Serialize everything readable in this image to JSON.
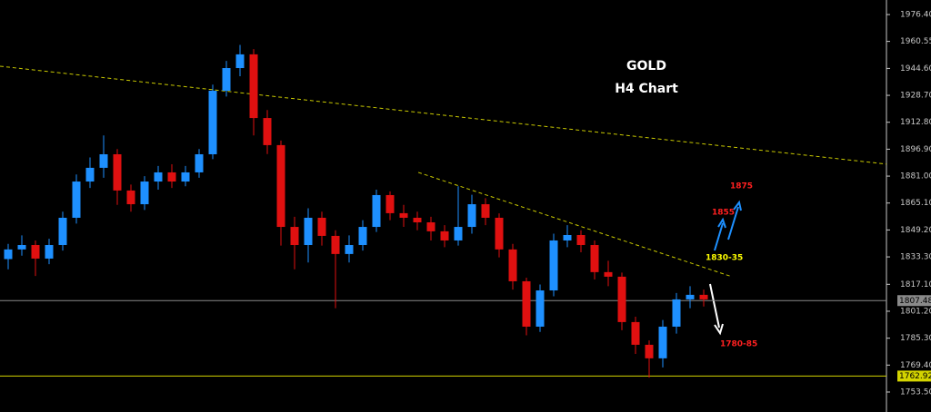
{
  "chart_data": {
    "type": "candlestick",
    "title": "GOLD",
    "subtitle": "H4 Chart",
    "up_color": "#1e90ff",
    "down_color": "#e01010",
    "open": [
      1832.0,
      1837.7,
      1840.3,
      1832.3,
      1840.3,
      1856.4,
      1877.8,
      1885.9,
      1893.9,
      1872.5,
      1864.4,
      1877.8,
      1883.2,
      1877.8,
      1883.2,
      1893.9,
      1931.4,
      1944.8,
      1952.9,
      1915.3,
      1899.3,
      1851.0,
      1840.3,
      1856.4,
      1845.7,
      1835.0,
      1840.3,
      1851.0,
      1869.8,
      1859.1,
      1856.4,
      1853.7,
      1848.4,
      1843.0,
      1851.0,
      1864.4,
      1856.4,
      1837.7,
      1818.9,
      1792.1,
      1813.5,
      1843.0,
      1846.2,
      1840.3,
      1824.3,
      1821.6,
      1794.8,
      1781.4,
      1773.4,
      1792.1,
      1808.2,
      1810.9
    ],
    "high": [
      1841.0,
      1846.0,
      1843.0,
      1844.0,
      1860.0,
      1882.0,
      1892.0,
      1905.0,
      1897.0,
      1876.0,
      1881.0,
      1887.0,
      1888.0,
      1887.0,
      1897.0,
      1935.0,
      1949.0,
      1958.5,
      1956.0,
      1920.0,
      1902.0,
      1857.0,
      1862.0,
      1860.0,
      1849.0,
      1846.0,
      1855.0,
      1873.0,
      1872.0,
      1864.0,
      1860.0,
      1857.0,
      1852.0,
      1875.0,
      1870.0,
      1868.0,
      1859.0,
      1841.0,
      1821.0,
      1817.0,
      1847.0,
      1852.0,
      1849.0,
      1843.0,
      1831.0,
      1824.0,
      1798.0,
      1784.0,
      1796.0,
      1812.0,
      1816.0,
      1814.0
    ],
    "low": [
      1826.0,
      1834.0,
      1822.0,
      1829.0,
      1837.0,
      1853.0,
      1874.0,
      1880.0,
      1864.0,
      1860.0,
      1861.0,
      1873.0,
      1874.0,
      1875.0,
      1880.0,
      1891.0,
      1928.0,
      1940.0,
      1905.0,
      1894.0,
      1840.0,
      1826.0,
      1830.0,
      1840.0,
      1803.0,
      1830.0,
      1837.0,
      1848.0,
      1855.0,
      1851.0,
      1849.0,
      1843.0,
      1839.0,
      1840.0,
      1847.0,
      1852.0,
      1833.0,
      1814.0,
      1787.0,
      1789.0,
      1810.0,
      1839.0,
      1836.0,
      1820.0,
      1816.0,
      1790.0,
      1776.0,
      1762.0,
      1768.0,
      1788.0,
      1803.0,
      1804.0
    ],
    "close": [
      1837.7,
      1840.3,
      1832.3,
      1840.3,
      1856.4,
      1877.8,
      1885.9,
      1893.9,
      1872.5,
      1864.4,
      1877.8,
      1883.2,
      1877.8,
      1883.2,
      1893.9,
      1931.4,
      1944.8,
      1952.9,
      1915.3,
      1899.3,
      1851.0,
      1840.3,
      1856.4,
      1845.7,
      1835.0,
      1840.3,
      1851.0,
      1869.8,
      1859.1,
      1856.4,
      1853.7,
      1848.4,
      1843.0,
      1851.0,
      1864.4,
      1856.4,
      1837.7,
      1818.9,
      1792.1,
      1813.5,
      1843.0,
      1846.2,
      1840.3,
      1824.3,
      1821.6,
      1794.8,
      1781.4,
      1773.4,
      1792.1,
      1808.2,
      1810.9,
      1808.2
    ],
    "xlim": [
      -0.6,
      64.4
    ],
    "ylim": [
      1741.7,
      1985.0
    ],
    "yticks": [
      {
        "value": 1976.4,
        "label": "1976.40"
      },
      1960.55,
      {
        "value": 1944.6,
        "label": "1944.60"
      },
      {
        "value": 1928.7,
        "label": "1928.70"
      },
      {
        "value": 1912.8,
        "label": "1912.80"
      },
      {
        "value": 1896.9,
        "label": "1896.90"
      },
      {
        "value": 1881.0,
        "label": "1881.00"
      },
      {
        "value": 1865.1,
        "label": "1865.10"
      },
      {
        "value": 1849.2,
        "label": "1849.20"
      },
      {
        "value": 1833.3,
        "label": "1833.30"
      },
      {
        "value": 1817.1,
        "label": "1817.10"
      },
      {
        "value": 1801.2,
        "label": "1801.20"
      },
      {
        "value": 1785.3,
        "label": "1785.30"
      },
      {
        "value": 1769.4,
        "label": "1769.40"
      },
      {
        "value": 1753.5,
        "label": "1753.50"
      }
    ],
    "price_lines": [
      {
        "value": 1807.48,
        "color": "#8a8a8a"
      },
      {
        "value": 1762.92,
        "color": "#d4d400"
      }
    ],
    "trendlines": [
      {
        "x": [
          -0.6,
          64.4
        ],
        "y": [
          1945.9,
          1888.1
        ],
        "color": "#c8c800"
      },
      {
        "x": [
          30.07,
          53.07
        ],
        "y": [
          1883.2,
          1821.6
        ],
        "color": "#c8c800"
      }
    ],
    "annotations": [
      {
        "text": "1875",
        "color": "#ff2020"
      },
      {
        "text": "1855",
        "color": "#ff2020"
      },
      {
        "text": "1830-35",
        "color": "#ffff00"
      },
      {
        "text": "1780-85",
        "color": "#ff2020"
      }
    ]
  }
}
